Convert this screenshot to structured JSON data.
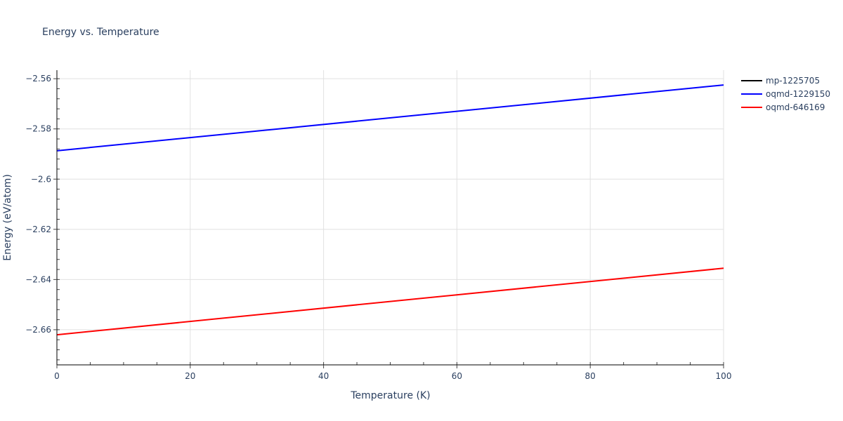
{
  "chart_data": {
    "type": "line",
    "title": "Energy vs. Temperature",
    "xlabel": "Temperature (K)",
    "ylabel": "Energy (eV/atom)",
    "xlim": [
      0,
      100
    ],
    "ylim": [
      -2.674,
      -2.5566
    ],
    "x_ticks": [
      0,
      20,
      40,
      60,
      80,
      100
    ],
    "x_tick_labels": [
      "0",
      "20",
      "40",
      "60",
      "80",
      "100"
    ],
    "y_ticks": [
      -2.56,
      -2.58,
      -2.6,
      -2.62,
      -2.64,
      -2.66
    ],
    "y_tick_labels": [
      "−2.56",
      "−2.58",
      "−2.6",
      "−2.62",
      "−2.64",
      "−2.66"
    ],
    "grid": true,
    "legend_position": "right-top",
    "series": [
      {
        "name": "mp-1225705",
        "color": "#000000",
        "x": [],
        "values": []
      },
      {
        "name": "oqmd-1229150",
        "color": "#0000ff",
        "x": [
          0,
          100
        ],
        "values": [
          -2.5887,
          -2.5625
        ]
      },
      {
        "name": "oqmd-646169",
        "color": "#ff0000",
        "x": [
          0,
          100
        ],
        "values": [
          -2.662,
          -2.6355
        ]
      }
    ]
  }
}
